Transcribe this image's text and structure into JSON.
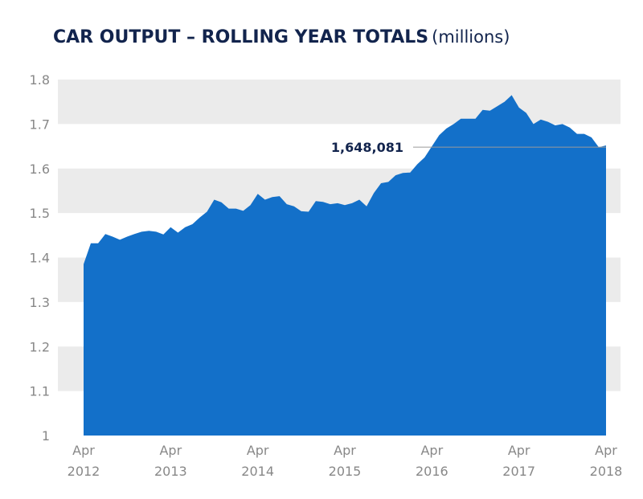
{
  "title": "CAR OUTPUT – ROLLING YEAR TOTALS",
  "subtitle": "(millions)",
  "colors": {
    "area": "#1370c9",
    "band": "#ebebeb",
    "title": "#12244d",
    "tick": "#888888"
  },
  "chart_data": {
    "type": "area",
    "title": "CAR OUTPUT – ROLLING YEAR TOTALS",
    "subtitle": "(millions)",
    "ylim": [
      1,
      1.8
    ],
    "y_ticks": [
      "1",
      "1.1",
      "1.2",
      "1.3",
      "1.4",
      "1.5",
      "1.6",
      "1.7",
      "1.8"
    ],
    "x_ticks": [
      {
        "month": "Apr",
        "year": "2012"
      },
      {
        "month": "Apr",
        "year": "2013"
      },
      {
        "month": "Apr",
        "year": "2014"
      },
      {
        "month": "Apr",
        "year": "2015"
      },
      {
        "month": "Apr",
        "year": "2016"
      },
      {
        "month": "Apr",
        "year": "2017"
      },
      {
        "month": "Apr",
        "year": "2018"
      }
    ],
    "x": [
      "2012-04",
      "2012-05",
      "2012-06",
      "2012-07",
      "2012-08",
      "2012-09",
      "2012-10",
      "2012-11",
      "2012-12",
      "2013-01",
      "2013-02",
      "2013-03",
      "2013-04",
      "2013-05",
      "2013-06",
      "2013-07",
      "2013-08",
      "2013-09",
      "2013-10",
      "2013-11",
      "2013-12",
      "2014-01",
      "2014-02",
      "2014-03",
      "2014-04",
      "2014-05",
      "2014-06",
      "2014-07",
      "2014-08",
      "2014-09",
      "2014-10",
      "2014-11",
      "2014-12",
      "2015-01",
      "2015-02",
      "2015-03",
      "2015-04",
      "2015-05",
      "2015-06",
      "2015-07",
      "2015-08",
      "2015-09",
      "2015-10",
      "2015-11",
      "2015-12",
      "2016-01",
      "2016-02",
      "2016-03",
      "2016-04",
      "2016-05",
      "2016-06",
      "2016-07",
      "2016-08",
      "2016-09",
      "2016-10",
      "2016-11",
      "2016-12",
      "2017-01",
      "2017-02",
      "2017-03",
      "2017-04",
      "2017-05",
      "2017-06",
      "2017-07",
      "2017-08",
      "2017-09",
      "2017-10",
      "2017-11",
      "2017-12",
      "2018-01",
      "2018-02",
      "2018-03",
      "2018-04"
    ],
    "values": [
      1.385,
      1.432,
      1.432,
      1.453,
      1.447,
      1.44,
      1.447,
      1.453,
      1.458,
      1.46,
      1.458,
      1.452,
      1.468,
      1.456,
      1.468,
      1.475,
      1.49,
      1.503,
      1.53,
      1.524,
      1.51,
      1.51,
      1.505,
      1.518,
      1.543,
      1.53,
      1.536,
      1.538,
      1.52,
      1.515,
      1.504,
      1.503,
      1.527,
      1.525,
      1.52,
      1.522,
      1.518,
      1.522,
      1.53,
      1.515,
      1.545,
      1.567,
      1.57,
      1.585,
      1.59,
      1.591,
      1.61,
      1.625,
      1.65,
      1.675,
      1.69,
      1.7,
      1.712,
      1.712,
      1.712,
      1.732,
      1.73,
      1.74,
      1.75,
      1.765,
      1.737,
      1.725,
      1.7,
      1.71,
      1.705,
      1.697,
      1.7,
      1.692,
      1.678,
      1.678,
      1.67,
      1.648,
      1.652
    ],
    "annotation": {
      "label": "1,648,081",
      "value": 1.648081
    },
    "grid": "alternating horizontal bands"
  }
}
